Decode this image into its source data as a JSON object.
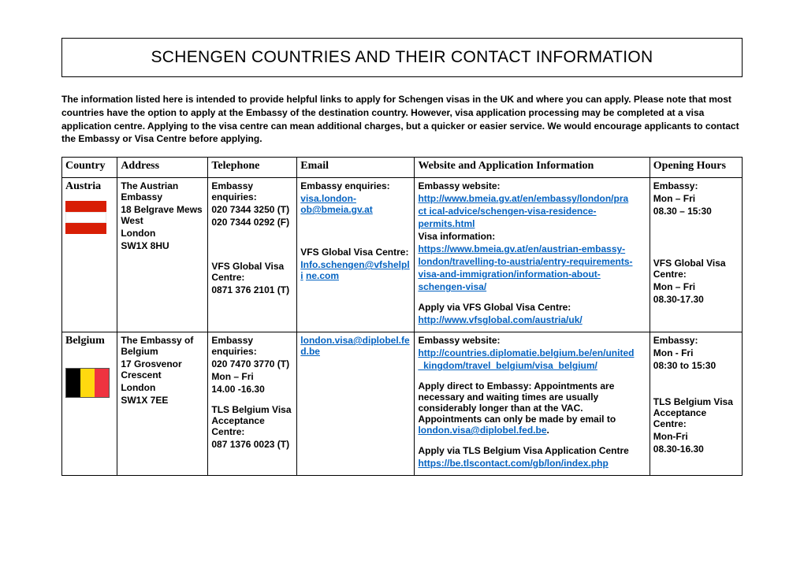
{
  "title": "SCHENGEN COUNTRIES AND THEIR CONTACT INFORMATION",
  "intro": "The information listed here is intended to provide helpful links to apply for Schengen visas in the UK and where you can apply. Please note that most countries have the option to apply at the Embassy of the destination country. However, visa application processing may be completed at a visa application centre. Applying to the visa centre can mean additional charges, but a quicker or easier service. We would encourage applicants to contact the Embassy or Visa Centre before applying.",
  "table": {
    "colwidths": [
      "66px",
      "108px",
      "106px",
      "140px",
      "280px",
      "110px"
    ],
    "headers": [
      "Country",
      "Address",
      "Telephone",
      "Email",
      "Website and Application Information",
      "Opening Hours"
    ]
  },
  "rows": {
    "austria": {
      "country": "Austria",
      "address_l1": "The Austrian Embassy",
      "address_l2": "18 Belgrave Mews West",
      "address_l3": "London",
      "address_l4": "SW1X 8HU",
      "tel_label1": "Embassy enquiries:",
      "tel1": "020 7344 3250 (T)",
      "tel2": "020 7344 0292 (F)",
      "tel_label2": "VFS Global Visa Centre:",
      "tel3": "0871 376 2101 (T)",
      "email_label1": "Embassy enquiries:",
      "email1a": "visa.london-",
      "email1b": "ob@bmeia.gv.at",
      "email_label2": "VFS Global Visa Centre:",
      "email2a": "Info.schengen@vfshelpli",
      "email2b": "ne.com",
      "web_label1": "Embassy website:",
      "web1a": "http://www.bmeia.gv.at/en/embassy/london/pra",
      "web1b": "ct",
      "web1c": " ical-advice/schengen-visa-residence-",
      "web1d": "permits.html",
      "web_label2": "Visa information:",
      "web2a": "https://www.bmeia.gv.at/en/austrian-embassy-",
      "web2b": "london/travelling-to-austria/entry-requirements-",
      "web2c": "visa-and-immigration/information-about-",
      "web2d": "schengen-visa/",
      "web_label3": "Apply via VFS Global Visa Centre:",
      "web3": "http://www.vfsglobal.com/austria/uk/",
      "hours_label1": "Embassy:",
      "hours1a": "Mon – Fri",
      "hours1b": "08.30 – 15:30",
      "hours_label2": "VFS Global Visa Centre:",
      "hours2a": "Mon – Fri",
      "hours2b": "08.30-17.30"
    },
    "belgium": {
      "country": "Belgium",
      "address_l1": "The Embassy of Belgium",
      "address_l2": "17 Grosvenor Crescent",
      "address_l3": "London",
      "address_l4": "SW1X 7EE",
      "tel_label1": "Embassy enquiries:",
      "tel1": "020 7470 3770 (T)",
      "tel2": "Mon – Fri",
      "tel3": "14.00 -16.30",
      "tel_label2": "TLS Belgium Visa Acceptance Centre:",
      "tel4": "087 1376 0023 (T)",
      "email1a": "london.visa@diplobel.fe",
      "email1b": "d.be",
      "web_label1": "Embassy website:",
      "web1a": "http://countries.diplomatie.belgium.be/en/united",
      "web1b": "_kingdom/travel_belgium/visa_belgium/",
      "web_para": "Apply direct to Embassy: Appointments are necessary and waiting times are usually considerably longer than at the VAC. Appointments can only be made by email to ",
      "web_email": "london.visa@diplobel.fed.be",
      "web_period": ".",
      "web_label3": "Apply via TLS Belgium Visa Application Centre",
      "web3": "https://be.tlscontact.com/gb/lon/index.php",
      "hours_label1": "Embassy:",
      "hours1a": "Mon - Fri",
      "hours1b": "08:30 to 15:30",
      "hours_label2": "TLS Belgium Visa Acceptance Centre:",
      "hours2a": "Mon-Fri",
      "hours2b": "08.30-16.30"
    }
  },
  "styling": {
    "link_color": "#0563c1",
    "body_font": "Arial, Helvetica, sans-serif",
    "heading_font": "Georgia, Times New Roman, serif",
    "body_font_size_pt": 9,
    "header_font_size_pt": 10.5,
    "title_font_size_pt": 16,
    "flag_austria_colors": [
      "#d81e05",
      "#ffffff",
      "#d81e05"
    ],
    "flag_belgium_colors": [
      "#000000",
      "#ffd90f",
      "#ef3340"
    ],
    "background": "#ffffff",
    "border_color": "#000000"
  }
}
